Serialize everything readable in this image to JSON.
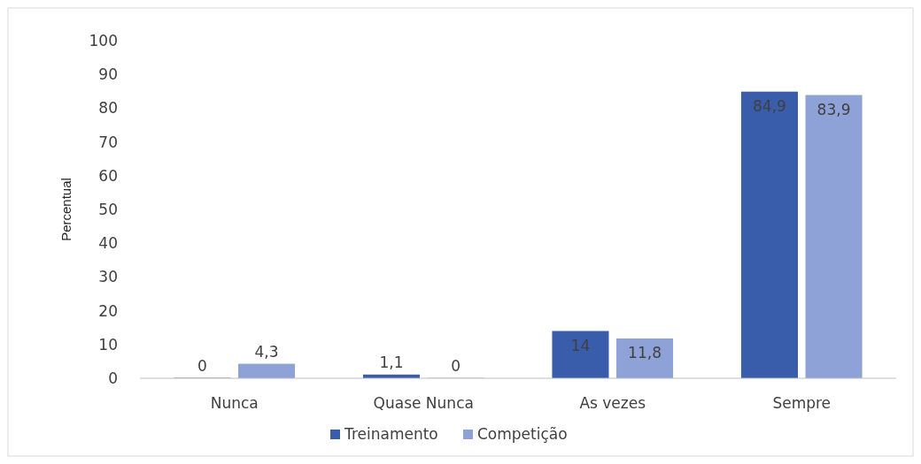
{
  "chart_data": {
    "type": "bar",
    "ylabel": "Percentual",
    "categories": [
      "Nunca",
      "Quase Nunca",
      "As vezes",
      "Sempre"
    ],
    "series": [
      {
        "name": "Treinamento",
        "color": "#3a5dab",
        "values": [
          0,
          1.1,
          14,
          84.9
        ],
        "value_labels": [
          "0",
          "1,1",
          "14",
          "84,9"
        ]
      },
      {
        "name": "Competição",
        "color": "#8fa2d8",
        "values": [
          4.3,
          0,
          11.8,
          83.9
        ],
        "value_labels": [
          "4,3",
          "0",
          "11,8",
          "83,9"
        ]
      }
    ],
    "ylim": [
      0,
      100
    ],
    "yticks": [
      0,
      10,
      20,
      30,
      40,
      50,
      60,
      70,
      80,
      90,
      100
    ],
    "grid": false,
    "legend": "bottom"
  }
}
